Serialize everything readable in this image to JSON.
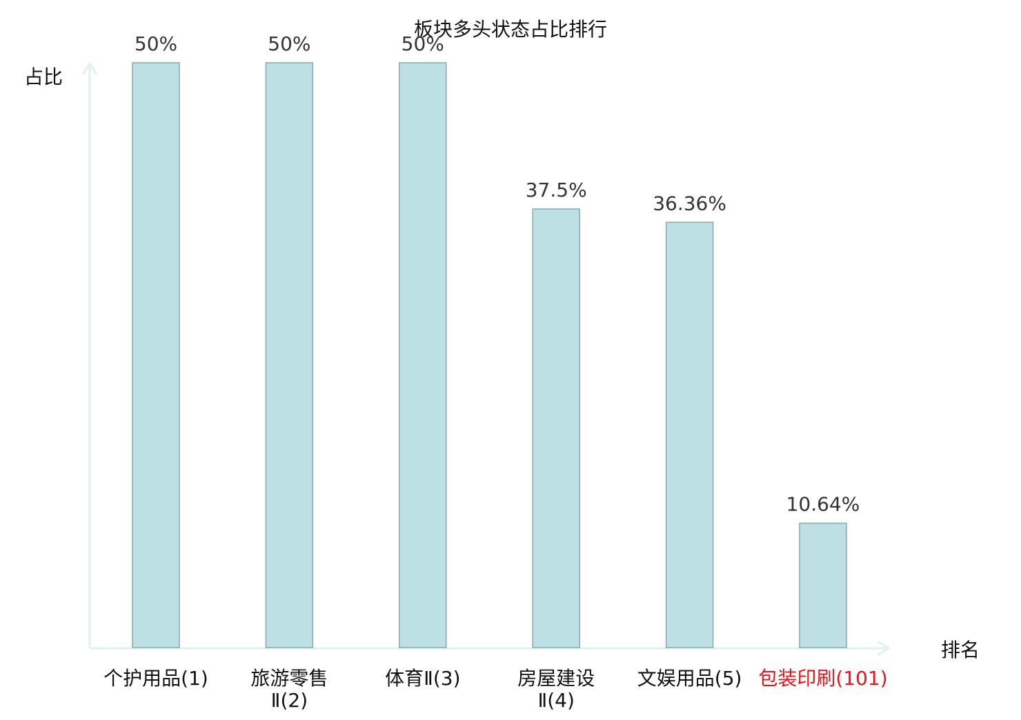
{
  "chart_data": {
    "type": "bar",
    "title": "板块多头状态占比排行",
    "ylabel": "占比",
    "xlabel": "排名",
    "ylim": [
      0,
      50
    ],
    "grid": false,
    "categories": [
      {
        "lines": [
          "个护用品",
          "(1)"
        ],
        "highlight": false
      },
      {
        "lines": [
          "旅游零售",
          "Ⅱ(2)"
        ],
        "highlight": false
      },
      {
        "lines": [
          "体育Ⅱ",
          "(3)"
        ],
        "highlight": false
      },
      {
        "lines": [
          "房屋建设",
          "Ⅱ(4)"
        ],
        "highlight": false
      },
      {
        "lines": [
          "文娱用品",
          "(5)"
        ],
        "highlight": false
      },
      {
        "lines": [
          "包装印刷",
          "(101)"
        ],
        "highlight": true
      }
    ],
    "values": [
      50,
      50,
      50,
      37.5,
      36.36,
      10.64
    ],
    "value_labels": [
      "50%",
      "50%",
      "50%",
      "37.5%",
      "36.36%",
      "10.64%"
    ],
    "colors": {
      "bar_fill": "#bce0e3",
      "bar_stroke": "#8aa9aa",
      "axis": "#dff2f0",
      "label": "#333333",
      "highlight": "#e8141a"
    }
  }
}
